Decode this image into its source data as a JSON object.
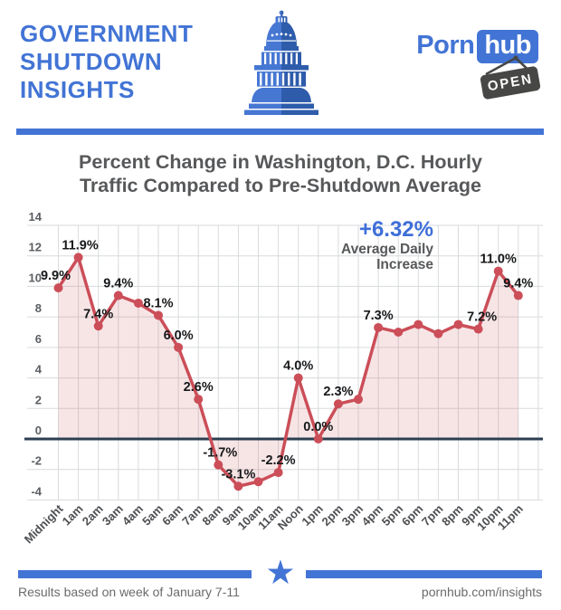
{
  "header": {
    "title_lines": [
      "GOVERNMENT",
      "SHUTDOWN",
      "INSIGHTS"
    ],
    "brand": {
      "word": "Porn",
      "suffix": "hub",
      "sign_text": "OPEN"
    }
  },
  "main": {
    "title_line1": "Percent Change in Washington, D.C. Hourly",
    "title_line2": "Traffic Compared to Pre-Shutdown Average"
  },
  "chart_data": {
    "type": "line",
    "title": "Percent Change in Washington, D.C. Hourly Traffic Compared to Pre-Shutdown Average",
    "categories": [
      "Midnight",
      "1am",
      "2am",
      "3am",
      "4am",
      "5am",
      "6am",
      "7am",
      "8am",
      "9am",
      "10am",
      "11am",
      "Noon",
      "1pm",
      "2pm",
      "3pm",
      "4pm",
      "5pm",
      "6pm",
      "7pm",
      "8pm",
      "9pm",
      "10pm",
      "11pm"
    ],
    "values": [
      9.9,
      11.9,
      7.4,
      9.4,
      8.9,
      8.1,
      6.0,
      2.6,
      -1.7,
      -3.1,
      -2.8,
      -2.2,
      4.0,
      0.0,
      2.3,
      2.6,
      7.3,
      7.0,
      7.5,
      6.9,
      7.5,
      7.2,
      11.0,
      9.4
    ],
    "point_labels": [
      "9.9%",
      "11.9%",
      "7.4%",
      "9.4%",
      "",
      "8.1%",
      "6.0%",
      "2.6%",
      "-1.7%",
      "-3.1%",
      "",
      "-2.2%",
      "4.0%",
      "0.0%",
      "2.3%",
      "",
      "7.3%",
      "",
      "",
      "",
      "",
      "7.2%",
      "11.0%",
      "9.4%"
    ],
    "label_dx": [
      -3,
      2,
      0,
      0,
      0,
      0,
      0,
      0,
      2,
      0,
      0,
      0,
      0,
      0,
      0,
      0,
      0,
      0,
      0,
      0,
      0,
      4,
      0,
      0
    ],
    "y_ticks": [
      14,
      12,
      10,
      8,
      6,
      4,
      2,
      0,
      -2,
      -4
    ],
    "ylim": [
      -4,
      14
    ],
    "xlabel": "",
    "ylabel": "",
    "grid": true,
    "legend": false,
    "annotation": {
      "headline": "+6.32%",
      "line1": "Average Daily",
      "line2": "Increase"
    },
    "colors": {
      "line": "#cb4e58",
      "fill": "rgba(203,78,88,0.15)",
      "zero_line": "#2c3e50",
      "grid": "#d8dadc",
      "annotation_headline": "#3e6fd9",
      "annotation_text": "#57585a"
    }
  },
  "footer": {
    "left_text": "Results based on week of January 7-11",
    "right_text": "pornhub.com/insights",
    "star_icon": "★"
  },
  "brand_colors": {
    "blue": "#4274d5",
    "sign_gray": "#474745"
  }
}
